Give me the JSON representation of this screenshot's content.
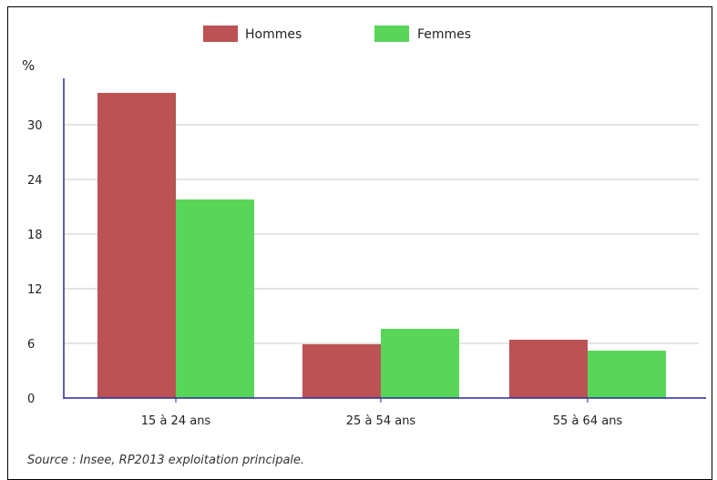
{
  "chart_data": {
    "type": "bar",
    "categories": [
      "15 à 24 ans",
      "25 à 54 ans",
      "55 à 64 ans"
    ],
    "series": [
      {
        "name": "Hommes",
        "values": [
          33.5,
          5.9,
          6.4
        ],
        "color": "#bb5253"
      },
      {
        "name": "Femmes",
        "values": [
          21.8,
          7.6,
          5.2
        ],
        "color": "#58d658"
      }
    ],
    "ylabel": "%",
    "ylim": [
      0,
      35
    ],
    "yticks": [
      0,
      6,
      12,
      18,
      24,
      30
    ],
    "grid": true,
    "legend_position": "top-center",
    "axis_color": "#2a2a9a",
    "grid_color": "#c8c8c8"
  },
  "source": "Source : Insee, RP2013 exploitation principale."
}
